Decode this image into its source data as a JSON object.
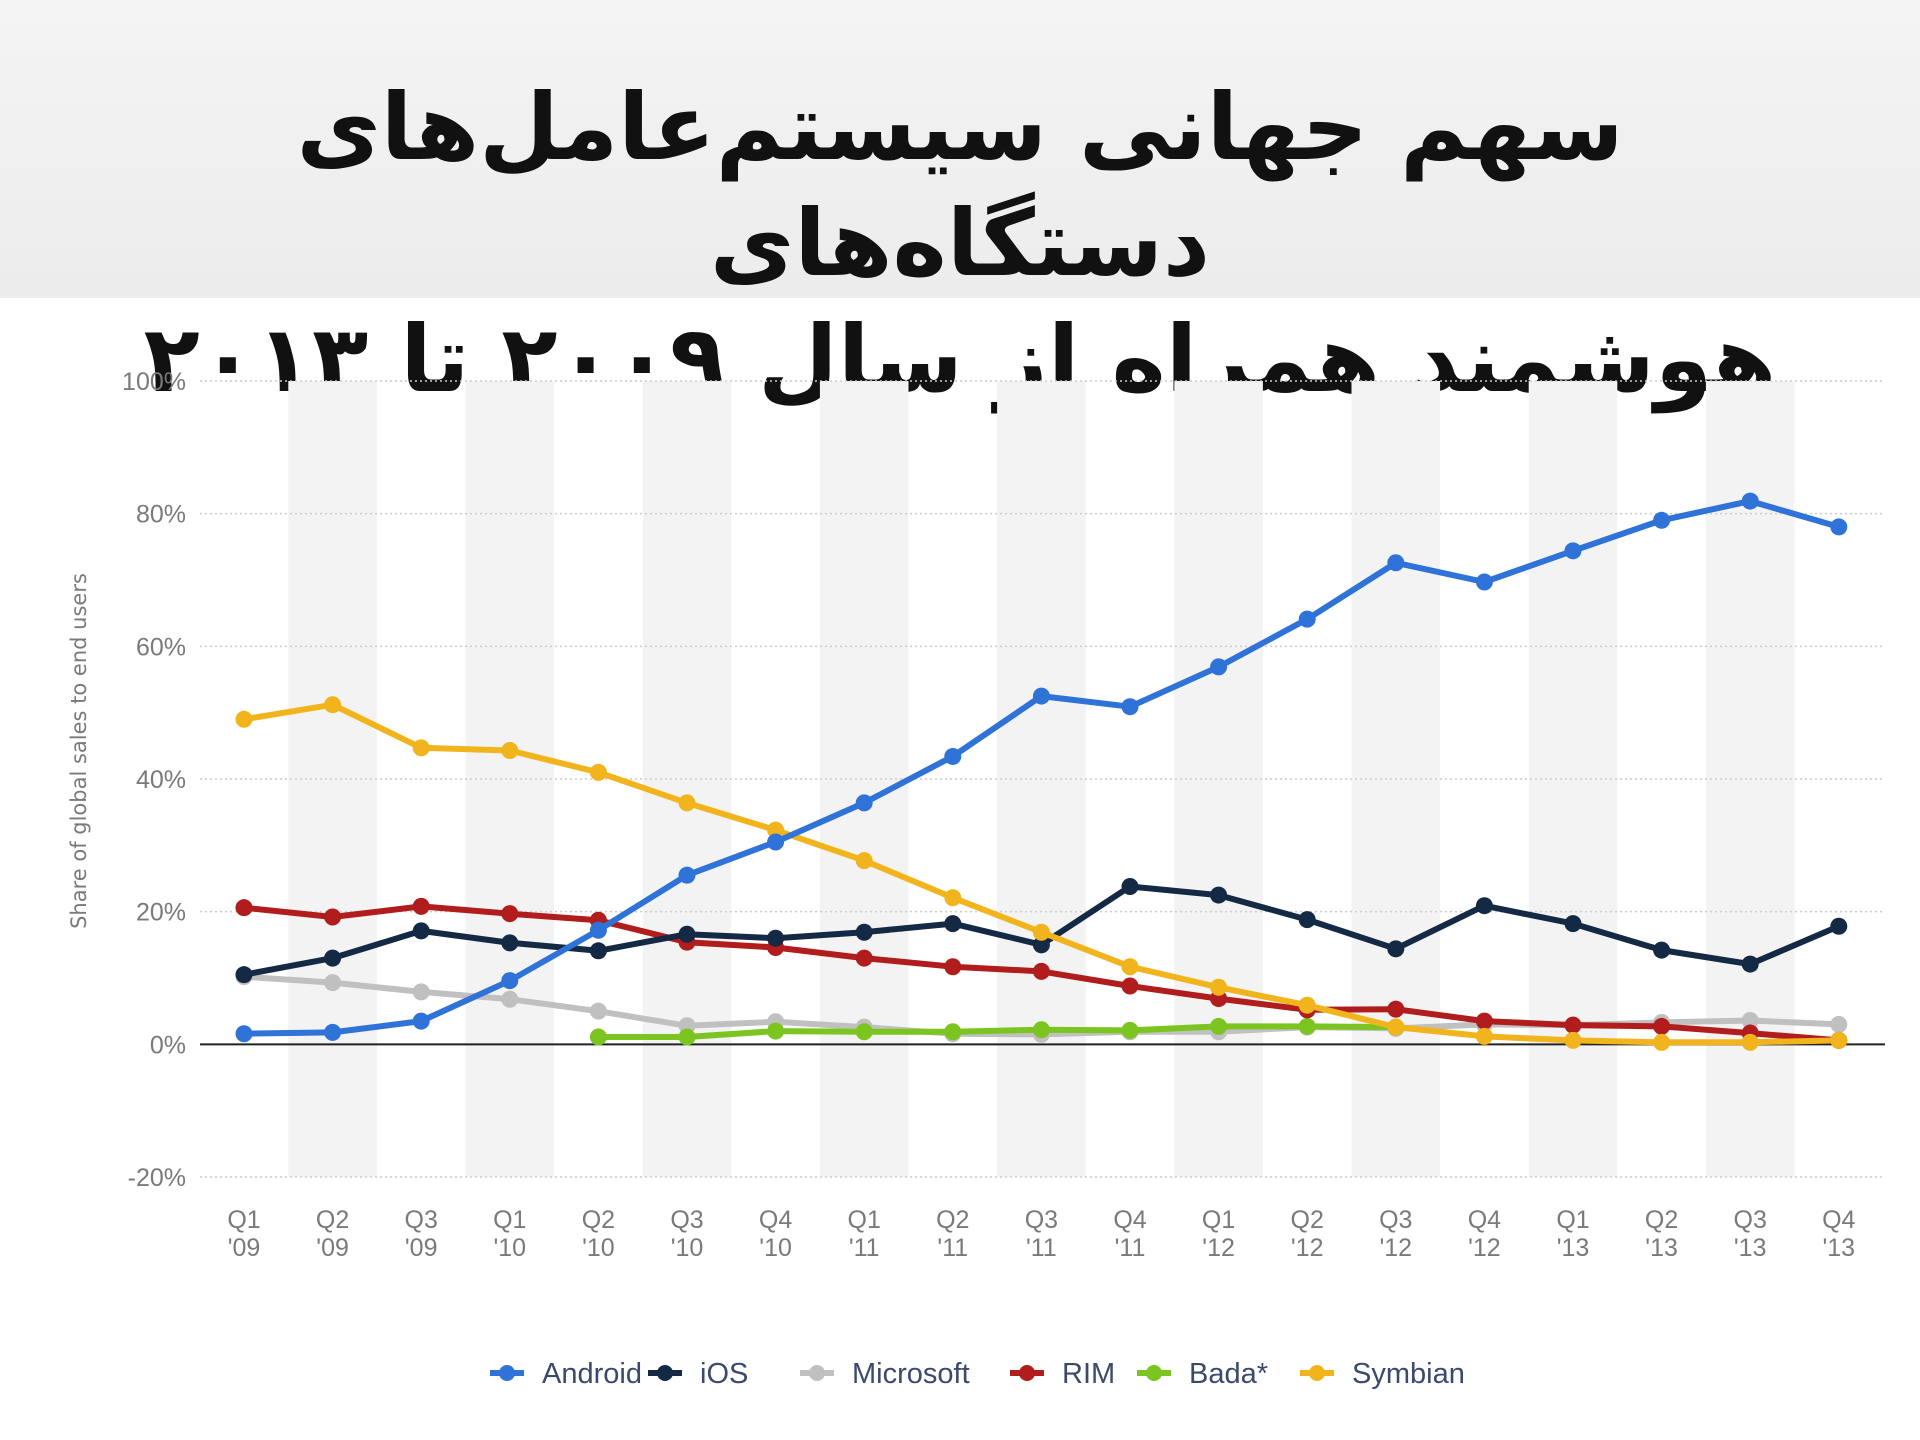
{
  "title_lines": [
    "سهم جهانی سیستم‌عامل‌های دستگاه‌های",
    "هوشمند همراه از سال ۲۰۰۹ تا ۲۰۱۳"
  ],
  "chart_data": {
    "type": "line",
    "ylabel": "Share of global sales to end users",
    "xlabel": "",
    "ylim": [
      -20,
      100
    ],
    "yticks": [
      100,
      80,
      60,
      40,
      20,
      0,
      -20
    ],
    "ytick_labels": [
      "100%",
      "80%",
      "60%",
      "40%",
      "20%",
      "0%",
      "-20%"
    ],
    "categories": [
      [
        "Q1",
        "'09"
      ],
      [
        "Q2",
        "'09"
      ],
      [
        "Q3",
        "'09"
      ],
      [
        "Q1",
        "'10"
      ],
      [
        "Q2",
        "'10"
      ],
      [
        "Q3",
        "'10"
      ],
      [
        "Q4",
        "'10"
      ],
      [
        "Q1",
        "'11"
      ],
      [
        "Q2",
        "'11"
      ],
      [
        "Q3",
        "'11"
      ],
      [
        "Q4",
        "'11"
      ],
      [
        "Q1",
        "'12"
      ],
      [
        "Q2",
        "'12"
      ],
      [
        "Q3",
        "'12"
      ],
      [
        "Q4",
        "'12"
      ],
      [
        "Q1",
        "'13"
      ],
      [
        "Q2",
        "'13"
      ],
      [
        "Q3",
        "'13"
      ],
      [
        "Q4",
        "'13"
      ]
    ],
    "grid": true,
    "legend_position": "bottom-center",
    "series": [
      {
        "name": "Microsoft",
        "color": "#c0c0c0",
        "values": [
          10.2,
          9.3,
          7.9,
          6.8,
          5.0,
          2.8,
          3.4,
          2.6,
          1.6,
          1.5,
          1.9,
          1.9,
          2.6,
          2.4,
          3.0,
          2.9,
          3.3,
          3.6,
          3.0
        ]
      },
      {
        "name": "Bada*",
        "color": "#7cc420",
        "values": [
          null,
          null,
          null,
          null,
          1.1,
          1.1,
          2.0,
          1.9,
          1.9,
          2.2,
          2.1,
          2.7,
          2.7,
          2.6,
          null,
          null,
          null,
          null,
          null
        ]
      },
      {
        "name": "RIM",
        "color": "#b11c1c",
        "values": [
          20.6,
          19.2,
          20.8,
          19.7,
          18.7,
          15.4,
          14.6,
          13.0,
          11.7,
          11.0,
          8.8,
          6.9,
          5.2,
          5.3,
          3.5,
          2.9,
          2.7,
          1.7,
          0.6
        ]
      },
      {
        "name": "iOS",
        "color": "#142a44",
        "values": [
          10.5,
          13.0,
          17.1,
          15.3,
          14.1,
          16.6,
          16.0,
          16.9,
          18.2,
          15.0,
          23.8,
          22.5,
          18.8,
          14.4,
          20.9,
          18.2,
          14.2,
          12.1,
          17.8
        ]
      },
      {
        "name": "Symbian",
        "color": "#f2b41c",
        "values": [
          49.0,
          51.2,
          44.7,
          44.3,
          41.0,
          36.4,
          32.3,
          27.7,
          22.1,
          16.9,
          11.7,
          8.6,
          5.9,
          2.6,
          1.2,
          0.6,
          0.3,
          0.3,
          0.6
        ]
      },
      {
        "name": "Android",
        "color": "#2f72d8",
        "values": [
          1.6,
          1.8,
          3.5,
          9.6,
          17.2,
          25.5,
          30.5,
          36.4,
          43.4,
          52.5,
          50.9,
          56.9,
          64.1,
          72.6,
          69.7,
          74.4,
          79.0,
          81.9,
          78.0
        ]
      }
    ],
    "legend_order": [
      "Android",
      "iOS",
      "Microsoft",
      "RIM",
      "Bada*",
      "Symbian"
    ]
  }
}
